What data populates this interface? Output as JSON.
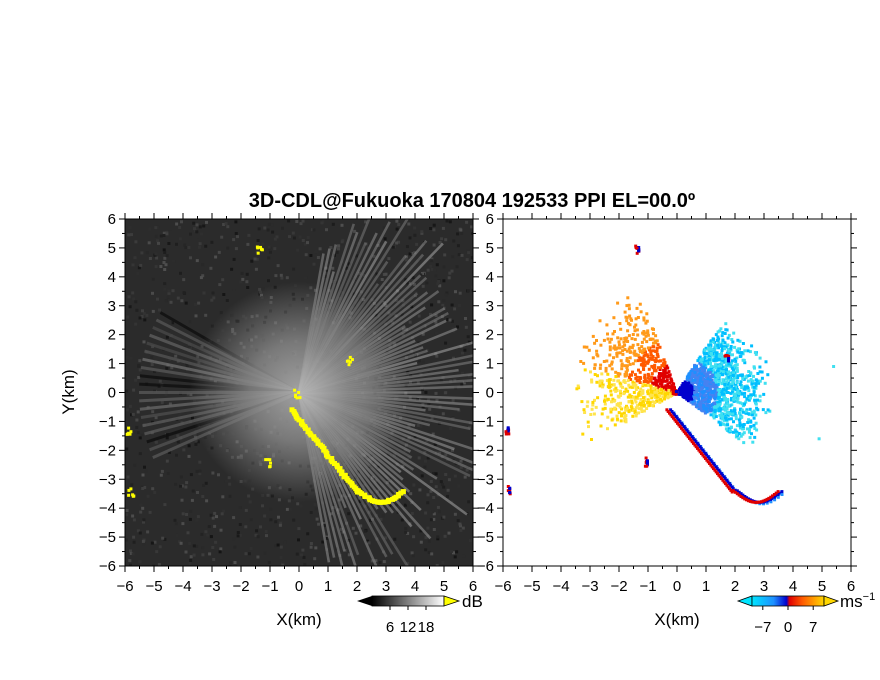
{
  "chart_data": [
    {
      "type": "heatmap",
      "title": "3D-CDL@Fukuoka 170804 192533 PPI EL=00.0º",
      "panel": "backscatter-intensity",
      "xlabel": "X(km)",
      "ylabel": "Y(km)",
      "xlim": [
        -6,
        6
      ],
      "ylim": [
        -6,
        6
      ],
      "xticks": [
        "-6",
        "-5",
        "-4",
        "-3",
        "-2",
        "-1",
        "0",
        "1",
        "2",
        "3",
        "4",
        "5",
        "6"
      ],
      "yticks": [
        "-6",
        "-5",
        "-4",
        "-3",
        "-2",
        "-1",
        "0",
        "1",
        "2",
        "3",
        "4",
        "5",
        "6"
      ],
      "colorbar": {
        "unit": "dB",
        "tick_labels": [
          "6",
          "12",
          "18"
        ],
        "ticks": [
          6,
          12,
          18
        ],
        "range": [
          0,
          24
        ]
      },
      "colors": {
        "background": "#2b2b2b",
        "highlight": "#ffff00"
      }
    },
    {
      "type": "heatmap",
      "panel": "doppler-velocity",
      "xlabel": "X(km)",
      "xlim": [
        -6,
        6
      ],
      "ylim": [
        -6,
        6
      ],
      "xticks": [
        "-6",
        "-5",
        "-4",
        "-3",
        "-2",
        "-1",
        "0",
        "1",
        "2",
        "3",
        "4",
        "5",
        "6"
      ],
      "yticks": [
        "-6",
        "-5",
        "-4",
        "-3",
        "-2",
        "-1",
        "0",
        "1",
        "2",
        "3",
        "4",
        "5",
        "6"
      ],
      "colorbar": {
        "unit": "ms",
        "unit_exponent": "−1",
        "tick_labels": [
          "−7",
          "0",
          "7"
        ],
        "ticks": [
          -7,
          0,
          7
        ],
        "range": [
          -10,
          10
        ]
      },
      "colors": {
        "negative": "#1e90ff",
        "near_zero": "#0000cd",
        "positive": "#ff4500",
        "far_positive": "#ffd700"
      }
    }
  ]
}
